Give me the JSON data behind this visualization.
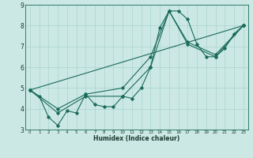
{
  "xlabel": "Humidex (Indice chaleur)",
  "ylabel": "",
  "xlim": [
    -0.5,
    23.5
  ],
  "ylim": [
    3,
    9
  ],
  "xticks": [
    0,
    1,
    2,
    3,
    4,
    5,
    6,
    7,
    8,
    9,
    10,
    11,
    12,
    13,
    14,
    15,
    16,
    17,
    18,
    19,
    20,
    21,
    22,
    23
  ],
  "yticks": [
    3,
    4,
    5,
    6,
    7,
    8,
    9
  ],
  "bg_color": "#cce8e4",
  "grid_color": "#a8d4cc",
  "line_color": "#1a6b5a",
  "lines": [
    {
      "x": [
        0,
        1,
        2,
        3,
        4,
        5,
        6,
        7,
        8,
        9,
        10,
        11,
        12,
        13,
        14,
        15,
        16,
        17,
        18,
        19,
        20,
        21,
        22,
        23
      ],
      "y": [
        4.9,
        4.6,
        3.6,
        3.2,
        3.9,
        3.8,
        4.7,
        4.2,
        4.1,
        4.1,
        4.6,
        4.5,
        5.0,
        6.0,
        7.9,
        8.7,
        8.7,
        8.3,
        7.1,
        6.5,
        6.5,
        6.9,
        7.6,
        8.0
      ]
    },
    {
      "x": [
        0,
        3,
        6,
        10,
        13,
        15,
        17,
        20,
        23
      ],
      "y": [
        4.9,
        3.8,
        4.6,
        4.6,
        6.0,
        8.7,
        7.1,
        6.5,
        8.0
      ]
    },
    {
      "x": [
        0,
        3,
        6,
        10,
        13,
        15,
        17,
        20,
        23
      ],
      "y": [
        4.9,
        4.0,
        4.7,
        5.0,
        6.5,
        8.7,
        7.2,
        6.6,
        8.0
      ]
    },
    {
      "x": [
        0,
        23
      ],
      "y": [
        4.9,
        8.0
      ]
    }
  ]
}
